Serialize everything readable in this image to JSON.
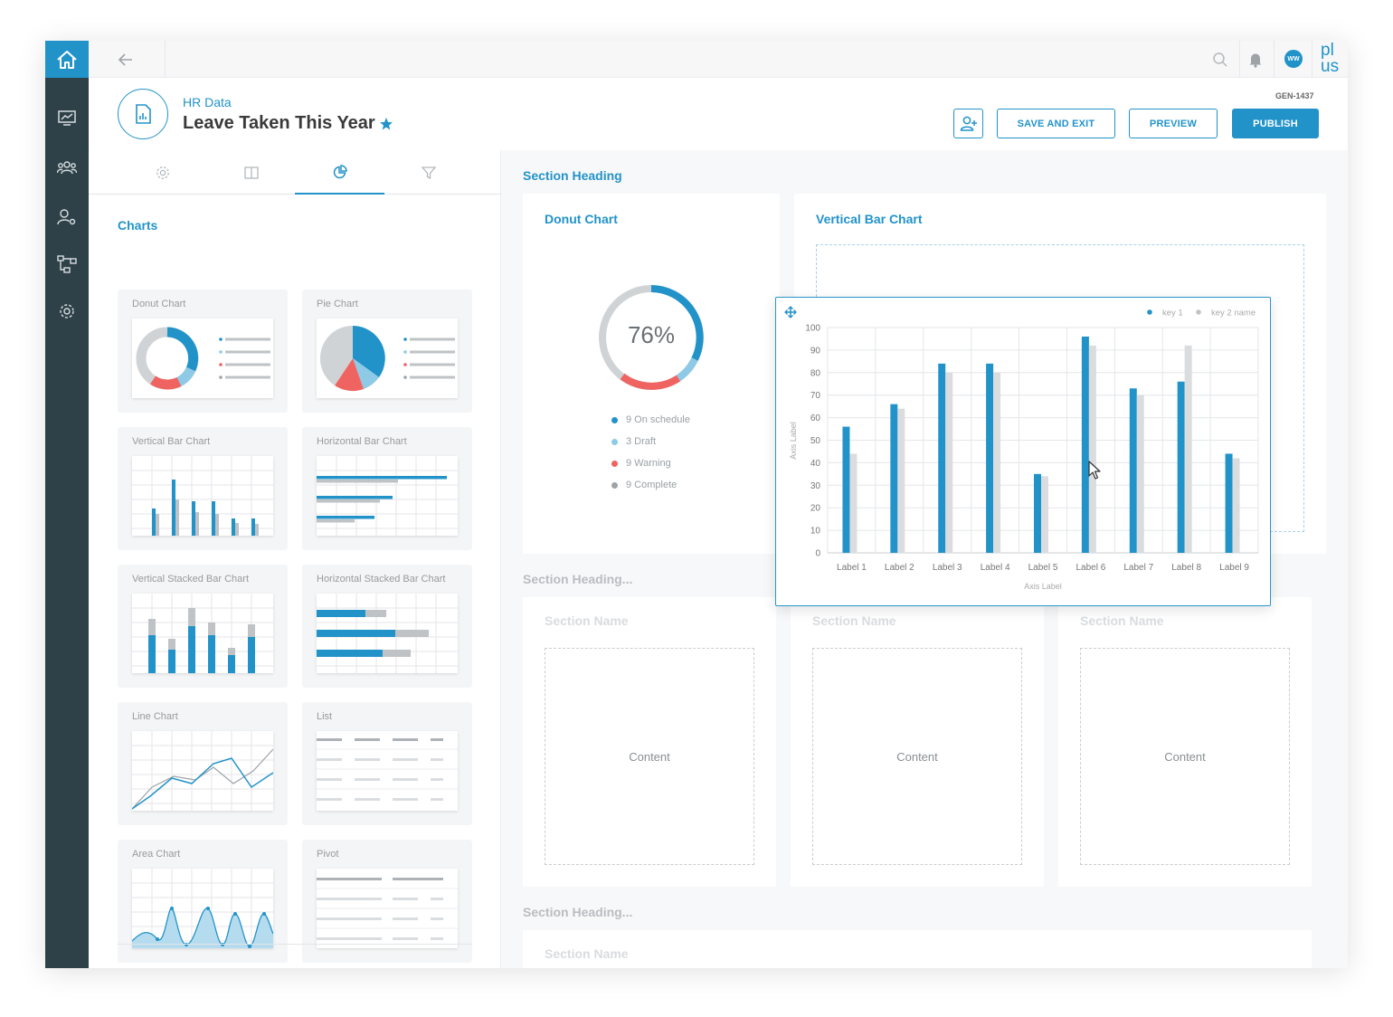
{
  "topbar": {
    "avatar_initials": "WW",
    "logo_text": "pl us"
  },
  "header": {
    "breadcrumb": "HR Data",
    "title": "Leave Taken This Year",
    "id": "GEN-1437",
    "buttons": {
      "save_exit": "SAVE AND EXIT",
      "preview": "PREVIEW",
      "publish": "PUBLISH"
    }
  },
  "left_panel": {
    "tabs": [
      "settings",
      "layout",
      "charts",
      "filter"
    ],
    "active_tab": "charts",
    "section_title": "Charts",
    "tiles": [
      {
        "label": "Donut Chart"
      },
      {
        "label": "Pie Chart"
      },
      {
        "label": "Vertical Bar Chart"
      },
      {
        "label": "Horizontal Bar Chart"
      },
      {
        "label": "Vertical Stacked Bar Chart"
      },
      {
        "label": "Horizontal Stacked Bar Chart"
      },
      {
        "label": "Line Chart"
      },
      {
        "label": "List"
      },
      {
        "label": "Area Chart"
      },
      {
        "label": "Pivot"
      }
    ]
  },
  "canvas": {
    "section1": "Section Heading",
    "section2": "Section Heading...",
    "section3": "Section Heading...",
    "donut": {
      "title": "Donut Chart",
      "center": "76%",
      "legend": [
        "9 On schedule",
        "3 Draft",
        "9 Warning",
        "9 Complete"
      ]
    },
    "vbar_card_title": "Vertical Bar Chart",
    "section_name": "Section Name",
    "content": "Content"
  },
  "colors": {
    "accent": "#2293c9",
    "light_blue": "#8ecae6",
    "warning": "#ef6461",
    "neutral": "#9ea3a7",
    "rail": "#2f4148"
  },
  "chart_data": {
    "type": "bar",
    "categories": [
      "Label 1",
      "Label 2",
      "Label 3",
      "Label 4",
      "Label 5",
      "Label 6",
      "Label 7",
      "Label 8",
      "Label 9"
    ],
    "series": [
      {
        "name": "key 1",
        "values": [
          56,
          66,
          84,
          84,
          35,
          96,
          73,
          76,
          44
        ]
      },
      {
        "name": "key 2 name",
        "values": [
          44,
          64,
          80,
          80,
          34,
          92,
          70,
          92,
          42
        ]
      }
    ],
    "xlabel": "Axis Label",
    "ylabel": "Axis Label",
    "ylim": [
      0,
      100
    ],
    "yticks": [
      0,
      10,
      20,
      30,
      40,
      50,
      60,
      70,
      80,
      90,
      100
    ],
    "grid": true,
    "legend": "top-right"
  }
}
